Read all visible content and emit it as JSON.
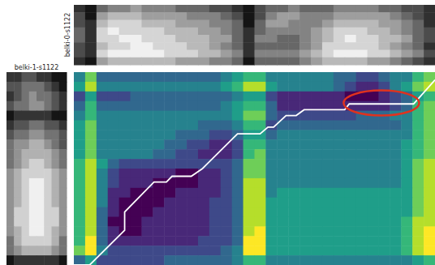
{
  "chart_data": {
    "type": "heatmap",
    "tick_labels": false,
    "xlim": [
      0,
      32
    ],
    "ylim": [
      0,
      20
    ],
    "cells": [
      [
        4,
        7,
        3,
        3,
        3,
        3,
        3,
        3,
        3,
        3,
        3,
        3,
        3,
        4,
        5,
        6,
        6,
        4,
        4,
        4,
        4,
        4,
        4,
        3,
        3,
        2,
        2,
        3,
        4,
        4,
        6,
        7
      ],
      [
        5,
        8,
        4,
        4,
        4,
        4,
        4,
        4,
        4,
        4,
        4,
        4,
        4,
        5,
        6,
        8,
        8,
        5,
        4,
        4,
        4,
        4,
        4,
        3,
        2,
        1,
        1,
        2,
        4,
        5,
        7,
        8
      ],
      [
        2,
        5,
        2,
        2,
        2,
        3,
        3,
        3,
        3,
        3,
        3,
        3,
        3,
        3,
        4,
        5,
        5,
        2,
        1,
        1,
        1,
        1,
        1,
        1,
        0,
        0,
        0,
        1,
        2,
        3,
        5,
        6
      ],
      [
        3,
        6,
        3,
        3,
        3,
        3,
        3,
        3,
        3,
        3,
        3,
        3,
        3,
        4,
        5,
        6,
        6,
        3,
        1,
        1,
        1,
        1,
        1,
        1,
        1,
        1,
        1,
        1,
        2,
        3,
        6,
        7
      ],
      [
        4,
        6,
        4,
        4,
        4,
        4,
        4,
        4,
        4,
        4,
        4,
        4,
        4,
        4,
        5,
        7,
        7,
        3,
        2,
        2,
        2,
        2,
        2,
        2,
        2,
        3,
        3,
        3,
        4,
        4,
        6,
        7
      ],
      [
        5,
        7,
        4,
        4,
        4,
        4,
        4,
        4,
        4,
        4,
        4,
        3,
        3,
        3,
        4,
        6,
        6,
        2,
        3,
        3,
        3,
        3,
        3,
        3,
        3,
        3,
        3,
        3,
        3,
        4,
        6,
        7
      ],
      [
        5,
        7,
        4,
        4,
        4,
        4,
        4,
        4,
        4,
        3,
        3,
        3,
        2,
        2,
        3,
        5,
        5,
        3,
        4,
        4,
        4,
        4,
        4,
        4,
        4,
        4,
        4,
        4,
        4,
        4,
        6,
        7
      ],
      [
        5,
        7,
        4,
        4,
        4,
        4,
        4,
        4,
        3,
        3,
        2,
        2,
        1,
        1,
        2,
        6,
        6,
        4,
        4,
        4,
        4,
        4,
        4,
        4,
        4,
        4,
        4,
        4,
        4,
        5,
        6,
        7
      ],
      [
        5,
        7,
        4,
        4,
        4,
        4,
        4,
        3,
        3,
        2,
        2,
        1,
        1,
        1,
        2,
        6,
        7,
        4,
        4,
        4,
        4,
        4,
        4,
        4,
        4,
        4,
        4,
        4,
        4,
        5,
        6,
        7
      ],
      [
        6,
        8,
        5,
        3,
        2,
        2,
        2,
        2,
        2,
        2,
        2,
        2,
        2,
        2,
        3,
        7,
        7,
        4,
        4,
        4,
        4,
        4,
        4,
        4,
        4,
        4,
        4,
        4,
        4,
        5,
        7,
        8
      ],
      [
        6,
        8,
        4,
        2,
        1,
        1,
        1,
        1,
        1,
        0,
        0,
        1,
        1,
        2,
        3,
        7,
        7,
        4,
        4,
        4,
        4,
        4,
        4,
        4,
        4,
        4,
        4,
        4,
        4,
        5,
        7,
        8
      ],
      [
        6,
        8,
        4,
        2,
        1,
        1,
        1,
        0,
        0,
        0,
        0,
        1,
        1,
        2,
        3,
        8,
        8,
        4,
        4,
        4,
        4,
        4,
        4,
        4,
        4,
        4,
        4,
        4,
        4,
        5,
        7,
        8
      ],
      [
        6,
        8,
        4,
        1,
        1,
        0,
        0,
        0,
        0,
        1,
        1,
        1,
        1,
        2,
        3,
        8,
        8,
        4,
        5,
        5,
        5,
        5,
        5,
        5,
        5,
        5,
        5,
        5,
        5,
        5,
        7,
        8
      ],
      [
        6,
        8,
        4,
        1,
        0,
        0,
        0,
        0,
        1,
        1,
        1,
        1,
        2,
        2,
        3,
        8,
        8,
        5,
        5,
        5,
        5,
        5,
        5,
        5,
        5,
        5,
        5,
        5,
        5,
        5,
        7,
        8
      ],
      [
        6,
        8,
        3,
        1,
        0,
        0,
        0,
        1,
        1,
        1,
        1,
        1,
        2,
        2,
        3,
        8,
        8,
        5,
        5,
        5,
        5,
        5,
        5,
        5,
        5,
        5,
        5,
        5,
        5,
        5,
        7,
        8
      ],
      [
        6,
        8,
        3,
        0,
        0,
        0,
        1,
        1,
        1,
        1,
        1,
        1,
        2,
        2,
        3,
        8,
        8,
        5,
        5,
        5,
        5,
        5,
        5,
        5,
        5,
        5,
        5,
        5,
        5,
        6,
        8,
        8
      ],
      [
        6,
        8,
        3,
        1,
        0,
        0,
        1,
        1,
        1,
        1,
        1,
        1,
        2,
        2,
        3,
        8,
        9,
        5,
        5,
        5,
        5,
        5,
        5,
        5,
        5,
        5,
        5,
        5,
        5,
        6,
        8,
        9
      ],
      [
        6,
        9,
        3,
        1,
        1,
        1,
        1,
        1,
        1,
        1,
        1,
        2,
        2,
        2,
        3,
        9,
        9,
        5,
        5,
        5,
        5,
        5,
        5,
        5,
        5,
        5,
        5,
        5,
        5,
        6,
        8,
        9
      ],
      [
        7,
        9,
        4,
        2,
        2,
        2,
        2,
        2,
        2,
        2,
        2,
        2,
        2,
        3,
        4,
        9,
        9,
        5,
        5,
        5,
        5,
        5,
        5,
        5,
        5,
        5,
        5,
        5,
        5,
        6,
        8,
        9
      ],
      [
        3,
        5,
        2,
        2,
        2,
        2,
        2,
        2,
        3,
        3,
        3,
        3,
        3,
        3,
        4,
        6,
        6,
        4,
        4,
        4,
        4,
        4,
        4,
        4,
        4,
        4,
        4,
        4,
        4,
        4,
        5,
        6
      ]
    ],
    "series": [
      {
        "color": "#ffffff",
        "x": [
          0,
          1.4,
          4.5,
          4.5,
          7.1,
          8.2,
          8.7,
          10.4,
          11.4,
          14.5,
          16.5,
          17.2,
          17.7,
          18.8,
          19.7,
          20.4,
          24.0,
          24.4,
          30.1,
          32
        ],
        "y": [
          0,
          0,
          3.6,
          5.5,
          8.6,
          8.6,
          9.2,
          9.2,
          10.0,
          13.6,
          13.6,
          14.3,
          14.3,
          15.5,
          15.5,
          16.1,
          16.1,
          16.7,
          16.7,
          19.2
        ]
      }
    ],
    "highlight": {
      "color": "#e0321e",
      "x": [
        23.9,
        30.6
      ],
      "y": [
        15.5,
        18.1
      ]
    },
    "x_image": {
      "label": "belki-0-s1122",
      "cells": [
        [
          2,
          1,
          4,
          5,
          5,
          6,
          5,
          5,
          5,
          4,
          4,
          4,
          3,
          3,
          2,
          1,
          3,
          4,
          4,
          5,
          4,
          4,
          4,
          5,
          5,
          5,
          5,
          4,
          4,
          3,
          3,
          2
        ],
        [
          3,
          1,
          6,
          7,
          7,
          7,
          6,
          6,
          6,
          6,
          5,
          5,
          5,
          4,
          3,
          1,
          3,
          5,
          6,
          6,
          5,
          5,
          5,
          6,
          6,
          6,
          6,
          6,
          5,
          4,
          3,
          2
        ],
        [
          3,
          2,
          7,
          8,
          8,
          8,
          7,
          7,
          7,
          6,
          6,
          6,
          5,
          5,
          4,
          1,
          4,
          6,
          6,
          5,
          5,
          5,
          6,
          7,
          7,
          7,
          7,
          6,
          6,
          5,
          4,
          2
        ],
        [
          4,
          2,
          8,
          9,
          8,
          8,
          8,
          8,
          7,
          7,
          7,
          6,
          6,
          5,
          4,
          2,
          4,
          5,
          5,
          5,
          5,
          6,
          7,
          8,
          8,
          8,
          7,
          7,
          6,
          5,
          4,
          3
        ],
        [
          4,
          2,
          8,
          8,
          9,
          9,
          8,
          8,
          8,
          7,
          7,
          7,
          6,
          6,
          4,
          2,
          5,
          5,
          4,
          4,
          5,
          6,
          7,
          8,
          9,
          8,
          8,
          7,
          7,
          6,
          4,
          3
        ],
        [
          3,
          2,
          7,
          8,
          8,
          9,
          9,
          8,
          8,
          8,
          7,
          7,
          6,
          5,
          4,
          2,
          4,
          4,
          4,
          4,
          5,
          6,
          8,
          8,
          8,
          8,
          8,
          7,
          6,
          5,
          4,
          2
        ],
        [
          3,
          2,
          8,
          9,
          9,
          9,
          9,
          9,
          8,
          8,
          8,
          7,
          7,
          6,
          5,
          2,
          5,
          5,
          5,
          5,
          6,
          7,
          8,
          9,
          9,
          9,
          8,
          8,
          7,
          6,
          5,
          3
        ],
        [
          2,
          1,
          6,
          7,
          7,
          7,
          7,
          7,
          7,
          6,
          6,
          6,
          5,
          5,
          4,
          1,
          4,
          4,
          4,
          4,
          5,
          6,
          7,
          7,
          7,
          7,
          6,
          6,
          5,
          4,
          3,
          2
        ]
      ]
    },
    "y_image": {
      "label": "belki-1-s1122",
      "cells": [
        [
          3,
          3,
          4,
          4,
          3,
          3,
          2,
          2
        ],
        [
          4,
          4,
          5,
          5,
          5,
          4,
          3,
          2
        ],
        [
          3,
          4,
          5,
          6,
          5,
          5,
          4,
          3
        ],
        [
          4,
          5,
          5,
          6,
          6,
          5,
          4,
          3
        ],
        [
          2,
          3,
          3,
          3,
          3,
          3,
          2,
          2
        ],
        [
          3,
          4,
          4,
          5,
          5,
          4,
          4,
          3
        ],
        [
          4,
          5,
          5,
          6,
          6,
          5,
          5,
          4
        ],
        [
          5,
          6,
          6,
          7,
          7,
          6,
          5,
          4
        ],
        [
          5,
          6,
          7,
          7,
          7,
          7,
          6,
          5
        ],
        [
          5,
          6,
          7,
          8,
          8,
          7,
          6,
          5
        ],
        [
          6,
          7,
          8,
          8,
          8,
          8,
          7,
          6
        ],
        [
          6,
          7,
          8,
          9,
          9,
          8,
          7,
          6
        ],
        [
          6,
          7,
          8,
          9,
          9,
          8,
          7,
          6
        ],
        [
          6,
          7,
          8,
          9,
          9,
          8,
          7,
          6
        ],
        [
          6,
          8,
          8,
          9,
          9,
          8,
          8,
          6
        ],
        [
          6,
          8,
          8,
          9,
          9,
          8,
          8,
          6
        ],
        [
          6,
          7,
          8,
          9,
          9,
          8,
          7,
          6
        ],
        [
          5,
          7,
          8,
          8,
          8,
          8,
          7,
          5
        ],
        [
          5,
          6,
          7,
          7,
          7,
          7,
          6,
          5
        ],
        [
          2,
          3,
          3,
          3,
          3,
          3,
          3,
          2
        ]
      ]
    }
  }
}
